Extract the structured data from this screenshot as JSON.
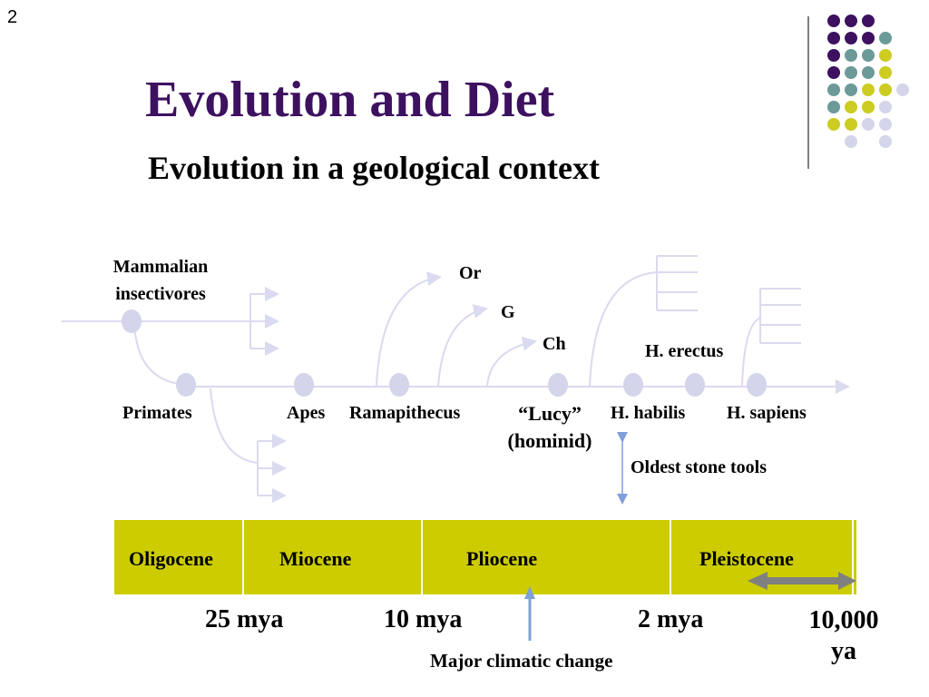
{
  "slide_number": "2",
  "title": "Evolution and Diet",
  "subtitle": "Evolution in a geological context",
  "tree": {
    "mammalian_line1": "Mammalian",
    "mammalian_line2": "insectivores",
    "primates": "Primates",
    "apes": "Apes",
    "ramapithecus": "Ramapithecus",
    "lucy_line1": "“Lucy”",
    "lucy_line2": "(hominid)",
    "h_habilis": "H. habilis",
    "h_sapiens": "H. sapiens",
    "h_erectus": "H. erectus",
    "or": "Or",
    "g": "G",
    "ch": "Ch",
    "stone_tools": "Oldest stone tools"
  },
  "epochs": [
    "Oligocene",
    "Miocene",
    "Pliocene",
    "Pleistocene"
  ],
  "time_labels": {
    "t25": "25 mya",
    "t10": "10 mya",
    "t2": "2 mya",
    "t10000_line1": "10,000",
    "t10000_line2": "ya"
  },
  "climate_change": "Major climatic change",
  "colors": {
    "title": "#3d1160",
    "node": "#d4d4ea",
    "line": "#dadaf0",
    "epoch_band": "#cccc00",
    "arrow_blue": "#7fa0d8",
    "dots": [
      "#3d1160",
      "#6b9a99",
      "#cccc22",
      "#d4d4ea"
    ]
  }
}
